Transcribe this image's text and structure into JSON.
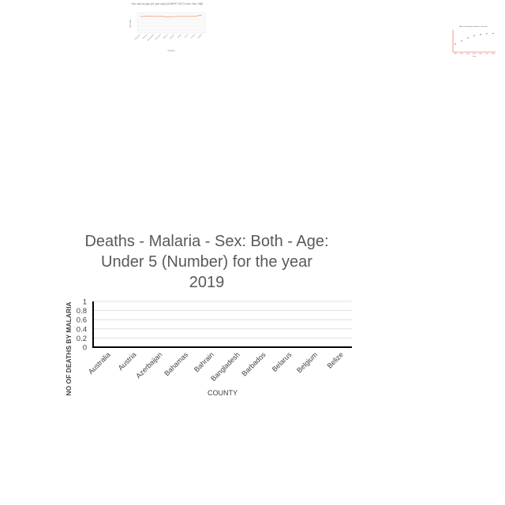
{
  "chart_data": [
    {
      "type": "line",
      "title": "Sex ratio by age (40 year olds) (UNWPP, 2017) in the Year 1980",
      "xlabel": "Country",
      "ylabel": "Sex ratio",
      "categories": [
        "Bahamas",
        "Bahrain",
        "Bangladesh",
        "Barbados",
        "Belarus",
        "Belgium",
        "Belize",
        "Benin",
        "Bhutan",
        "Bolivia"
      ],
      "values": [
        0.96,
        1.0,
        0.98,
        0.99,
        0.95,
        0.97,
        0.98,
        0.98,
        0.99,
        1.06
      ],
      "ylim": [
        0,
        1.2
      ],
      "color": "#f4a582"
    },
    {
      "type": "scatter",
      "title": "Age at marriage of women over time",
      "xlabel": "Year",
      "ylabel": "Age",
      "x": [
        1990,
        1995,
        2000,
        2005,
        2010,
        2015,
        2020
      ],
      "values": [
        18.5,
        19.5,
        20.5,
        21.2,
        21.6,
        21.8,
        21.9
      ],
      "color": "#333333",
      "axis_color": "#d9534f"
    },
    {
      "type": "bar",
      "title": "Deaths - Malaria - Sex: Both - Age: Under 5 (Number) for the year 2019",
      "title_lines": [
        "Deaths - Malaria - Sex: Both - Age:",
        "Under 5 (Number) for the year",
        "2019"
      ],
      "xlabel": "COUNTY",
      "ylabel": "NO OF DEATHS BY MALARIA",
      "categories": [
        "Australia",
        "Austria",
        "Azerbaijan",
        "Bahamas",
        "Bahrain",
        "Bangladesh",
        "Barbados",
        "Belarus",
        "Belgium",
        "Belize"
      ],
      "values": [
        0,
        0,
        0,
        0,
        0,
        0,
        0,
        0,
        0,
        0
      ],
      "yticks": [
        "0",
        "0.2",
        "0.4",
        "0.6",
        "0.8",
        "1"
      ],
      "ylim": [
        0,
        1
      ],
      "grid": true,
      "legend": "none",
      "bar_color": "#4472c4",
      "grid_color": "#d9d9d9",
      "axis_color": "#000000"
    }
  ]
}
